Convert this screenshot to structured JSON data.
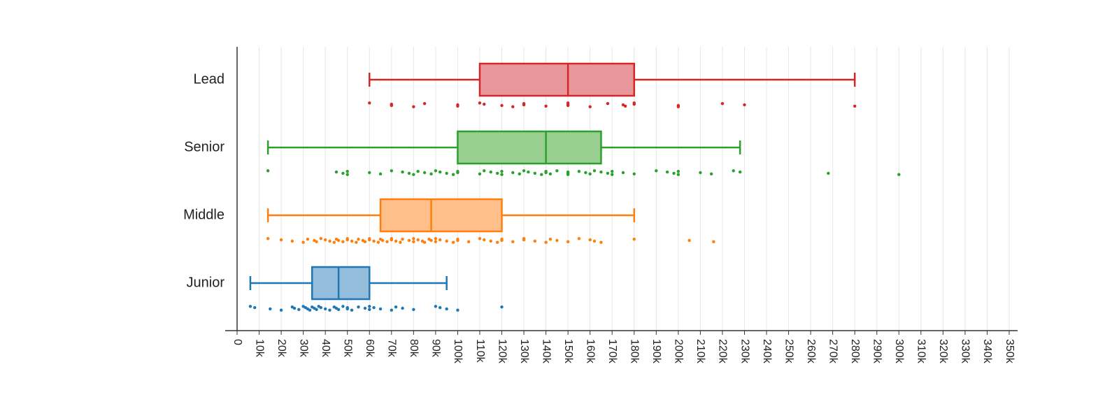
{
  "chart_data": {
    "type": "box",
    "orientation": "horizontal",
    "x_range": [
      0,
      350000
    ],
    "x_ticks": [
      0,
      10000,
      20000,
      30000,
      40000,
      50000,
      60000,
      70000,
      80000,
      90000,
      100000,
      110000,
      120000,
      130000,
      140000,
      150000,
      160000,
      170000,
      180000,
      190000,
      200000,
      210000,
      220000,
      230000,
      240000,
      250000,
      260000,
      270000,
      280000,
      290000,
      300000,
      310000,
      320000,
      330000,
      340000,
      350000
    ],
    "x_tick_labels": [
      "0",
      "10k",
      "20k",
      "30k",
      "40k",
      "50k",
      "60k",
      "70k",
      "80k",
      "90k",
      "100k",
      "110k",
      "120k",
      "130k",
      "140k",
      "150k",
      "160k",
      "170k",
      "180k",
      "190k",
      "200k",
      "210k",
      "220k",
      "230k",
      "240k",
      "250k",
      "260k",
      "270k",
      "280k",
      "290k",
      "300k",
      "310k",
      "320k",
      "330k",
      "340k",
      "350k"
    ],
    "grid": "vertical",
    "categories": [
      "Lead",
      "Senior",
      "Middle",
      "Junior"
    ],
    "series": [
      {
        "name": "Lead",
        "color": "#d62728",
        "fill": "#e8979a",
        "min": 60000,
        "q1": 110000,
        "median": 150000,
        "q3": 180000,
        "max": 280000,
        "points": [
          60000,
          70000,
          70000,
          80000,
          85000,
          100000,
          100000,
          110000,
          112000,
          120000,
          125000,
          130000,
          130000,
          140000,
          150000,
          150000,
          150000,
          160000,
          168000,
          175000,
          176000,
          180000,
          180000,
          200000,
          200000,
          220000,
          230000,
          280000
        ]
      },
      {
        "name": "Senior",
        "color": "#2ca02c",
        "fill": "#98cf91",
        "min": 14000,
        "q1": 100000,
        "median": 140000,
        "q3": 165000,
        "max": 228000,
        "points": [
          14000,
          45000,
          48000,
          50000,
          50000,
          60000,
          65000,
          70000,
          75000,
          78000,
          80000,
          82000,
          85000,
          88000,
          90000,
          92000,
          95000,
          98000,
          100000,
          100000,
          110000,
          112000,
          115000,
          118000,
          120000,
          120000,
          125000,
          128000,
          130000,
          132000,
          135000,
          138000,
          140000,
          140000,
          142000,
          145000,
          150000,
          150000,
          150000,
          155000,
          158000,
          160000,
          162000,
          165000,
          168000,
          170000,
          170000,
          175000,
          180000,
          190000,
          195000,
          198000,
          200000,
          200000,
          210000,
          215000,
          225000,
          228000,
          268000,
          300000
        ]
      },
      {
        "name": "Middle",
        "color": "#ff7f0e",
        "fill": "#ffbf8b",
        "min": 14000,
        "q1": 65000,
        "median": 88000,
        "q3": 120000,
        "max": 180000,
        "points": [
          14000,
          20000,
          25000,
          30000,
          32000,
          35000,
          36000,
          38000,
          40000,
          42000,
          44000,
          45000,
          46000,
          48000,
          50000,
          50000,
          52000,
          54000,
          55000,
          57000,
          58000,
          60000,
          60000,
          62000,
          64000,
          65000,
          66000,
          68000,
          70000,
          70000,
          72000,
          74000,
          75000,
          78000,
          80000,
          80000,
          82000,
          84000,
          85000,
          87000,
          88000,
          90000,
          90000,
          92000,
          95000,
          98000,
          100000,
          100000,
          105000,
          110000,
          112000,
          115000,
          118000,
          120000,
          120000,
          125000,
          130000,
          130000,
          135000,
          140000,
          142000,
          145000,
          150000,
          155000,
          160000,
          162000,
          165000,
          180000,
          205000,
          216000
        ]
      },
      {
        "name": "Junior",
        "color": "#1f77b4",
        "fill": "#94bcdb",
        "min": 6000,
        "q1": 34000,
        "median": 46000,
        "q3": 60000,
        "max": 95000,
        "points": [
          6000,
          8000,
          15000,
          20000,
          25000,
          26000,
          28000,
          30000,
          31000,
          32000,
          33000,
          34000,
          35000,
          36000,
          37000,
          38000,
          40000,
          42000,
          44000,
          45000,
          46000,
          48000,
          50000,
          50000,
          52000,
          55000,
          58000,
          60000,
          60000,
          62000,
          65000,
          70000,
          72000,
          75000,
          80000,
          90000,
          92000,
          95000,
          100000,
          120000
        ]
      }
    ]
  }
}
